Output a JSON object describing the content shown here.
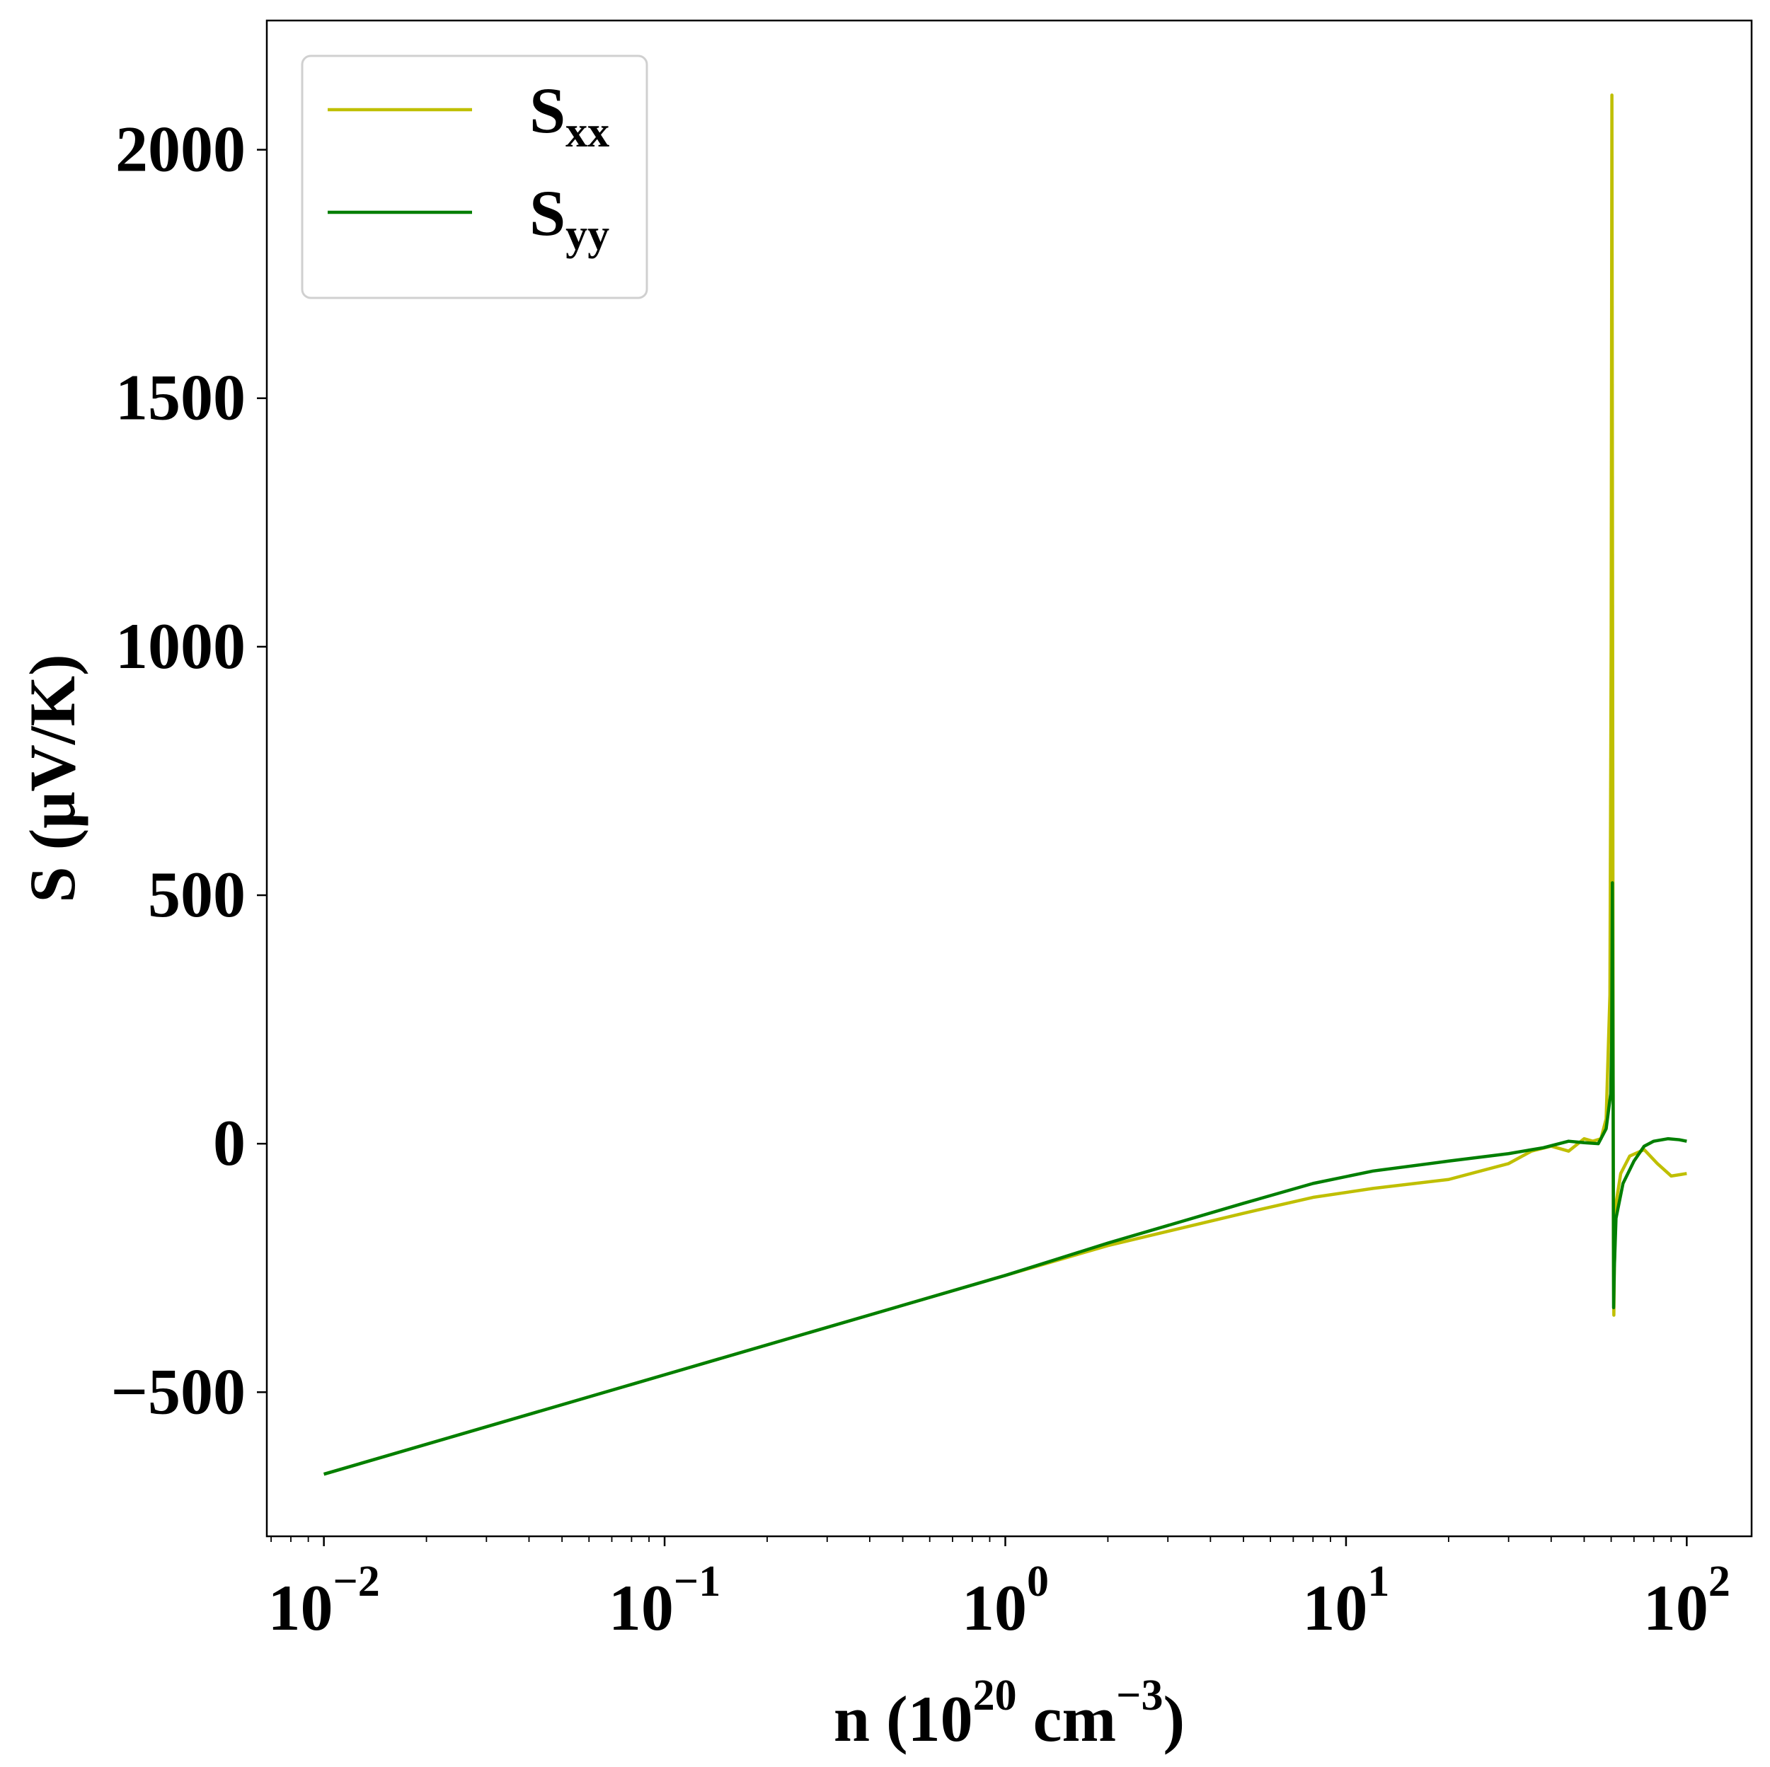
{
  "chart_data": {
    "type": "line",
    "title": "",
    "xlabel": {
      "base": "n (10",
      "sup1": "20",
      "mid": " cm",
      "sup2": "−3",
      "end": ")"
    },
    "ylabel": "S (μV/K)",
    "xscale": "log",
    "xlim": [
      0.0068,
      155
    ],
    "ylim": [
      -790,
      2260
    ],
    "grid": false,
    "legend": {
      "placement": "top-left"
    },
    "x_ticks": [
      {
        "value": 0.01,
        "base": "10",
        "exp": "−2"
      },
      {
        "value": 0.1,
        "base": "10",
        "exp": "−1"
      },
      {
        "value": 1,
        "base": "10",
        "exp": "0"
      },
      {
        "value": 10,
        "base": "10",
        "exp": "1"
      },
      {
        "value": 100,
        "base": "10",
        "exp": "2"
      }
    ],
    "y_ticks": [
      {
        "value": -500,
        "label": "−500"
      },
      {
        "value": 0,
        "label": "0"
      },
      {
        "value": 500,
        "label": "500"
      },
      {
        "value": 1000,
        "label": "1000"
      },
      {
        "value": 1500,
        "label": "1500"
      },
      {
        "value": 2000,
        "label": "2000"
      }
    ],
    "series": [
      {
        "name": "S",
        "sub": "xx",
        "color": "#bfbf00",
        "points": [
          [
            0.01,
            -665
          ],
          [
            0.1,
            -465
          ],
          [
            1,
            -265
          ],
          [
            2,
            -205
          ],
          [
            5,
            -140
          ],
          [
            8,
            -108
          ],
          [
            12,
            -90
          ],
          [
            20,
            -72
          ],
          [
            30,
            -40
          ],
          [
            35,
            -15
          ],
          [
            40,
            -5
          ],
          [
            45,
            -15
          ],
          [
            50,
            10
          ],
          [
            53,
            5
          ],
          [
            56,
            10
          ],
          [
            58,
            50
          ],
          [
            59.5,
            300
          ],
          [
            60,
            1000
          ],
          [
            60.3,
            2110
          ],
          [
            60.6,
            1000
          ],
          [
            60.9,
            -200
          ],
          [
            61.1,
            -345
          ],
          [
            61.3,
            -250
          ],
          [
            62,
            -120
          ],
          [
            64,
            -60
          ],
          [
            68,
            -25
          ],
          [
            75,
            -12
          ],
          [
            82,
            -40
          ],
          [
            90,
            -65
          ],
          [
            96,
            -62
          ],
          [
            100,
            -60
          ]
        ]
      },
      {
        "name": "S",
        "sub": "yy",
        "color": "#007f00",
        "points": [
          [
            0.01,
            -665
          ],
          [
            0.1,
            -465
          ],
          [
            1,
            -265
          ],
          [
            2,
            -200
          ],
          [
            5,
            -120
          ],
          [
            8,
            -80
          ],
          [
            12,
            -55
          ],
          [
            20,
            -35
          ],
          [
            30,
            -20
          ],
          [
            38,
            -8
          ],
          [
            45,
            5
          ],
          [
            50,
            2
          ],
          [
            55,
            0
          ],
          [
            58,
            30
          ],
          [
            59.8,
            100
          ],
          [
            60.2,
            200
          ],
          [
            60.5,
            525
          ],
          [
            60.8,
            100
          ],
          [
            61,
            -330
          ],
          [
            61.3,
            -250
          ],
          [
            62,
            -150
          ],
          [
            65,
            -80
          ],
          [
            70,
            -35
          ],
          [
            75,
            -5
          ],
          [
            80,
            5
          ],
          [
            88,
            10
          ],
          [
            95,
            8
          ],
          [
            100,
            5
          ]
        ]
      }
    ]
  }
}
